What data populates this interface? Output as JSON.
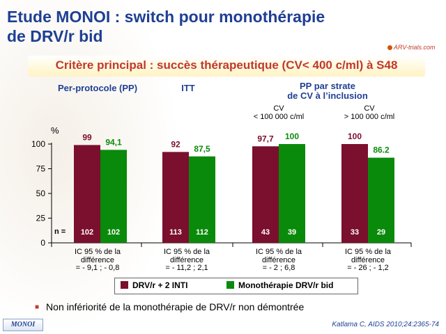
{
  "title_line1": "Etude MONOI : switch pour monothérapie",
  "title_line2": "de DRV/r bid",
  "logo_text": "ARV-trials.com",
  "subtitle": "Critère principal : succès thérapeutique (CV< 400 c/ml) à S48",
  "groups": {
    "pp": "Per-protocole (PP)",
    "itt": "ITT",
    "strata_line1": "PP par strate",
    "strata_line2": "de CV à l’inclusion"
  },
  "cv": {
    "low_line1": "CV",
    "low_line2": "< 100 000 c/ml",
    "high_line1": "CV",
    "high_line2": "> 100 000 c/ml"
  },
  "n_label": "n =",
  "ic": [
    {
      "l1": "IC 95 % de la",
      "l2": "différence",
      "l3": "= - 9,1 ; - 0,8"
    },
    {
      "l1": "IC 95 % de la",
      "l2": "différence",
      "l3": "= - 11,2 ; 2,1"
    },
    {
      "l1": "IC 95 % de la",
      "l2": "différence",
      "l3": "= - 2 ; 6,8"
    },
    {
      "l1": "IC 95 % de la",
      "l2": "différence",
      "l3": "= - 26 ; - 1,2"
    }
  ],
  "legend": {
    "s1": "DRV/r + 2 INTI",
    "s2": "Monothérapie DRV/r bid"
  },
  "bullet": "Non infériorité de la monothérapie de DRV/r non démontrée",
  "tag": "MONOI",
  "citation": "Katlama C, AIDS 2010;24:2365-74",
  "colors": {
    "series1": "#7b0f2e",
    "series2": "#0a8a0a",
    "title": "#1f3f93",
    "accent": "#c0392b"
  },
  "chart_data": {
    "type": "bar",
    "ylabel": "%",
    "ylim": [
      0,
      100
    ],
    "yticks": [
      0,
      25,
      50,
      75,
      100
    ],
    "categories": [
      "Per-protocole (PP)",
      "ITT",
      "CV < 100 000 c/ml",
      "CV > 100 000 c/ml"
    ],
    "series": [
      {
        "name": "DRV/r + 2 INTI",
        "values": [
          99,
          92,
          97.7,
          100
        ],
        "labels": [
          "99",
          "92",
          "97,7",
          "100"
        ],
        "n": [
          "102",
          "113",
          "43",
          "33"
        ]
      },
      {
        "name": "Monothérapie DRV/r bid",
        "values": [
          94.1,
          87.5,
          100,
          86.2
        ],
        "labels": [
          "94,1",
          "87,5",
          "100",
          "86.2"
        ],
        "n": [
          "102",
          "112",
          "39",
          "29"
        ]
      }
    ]
  }
}
